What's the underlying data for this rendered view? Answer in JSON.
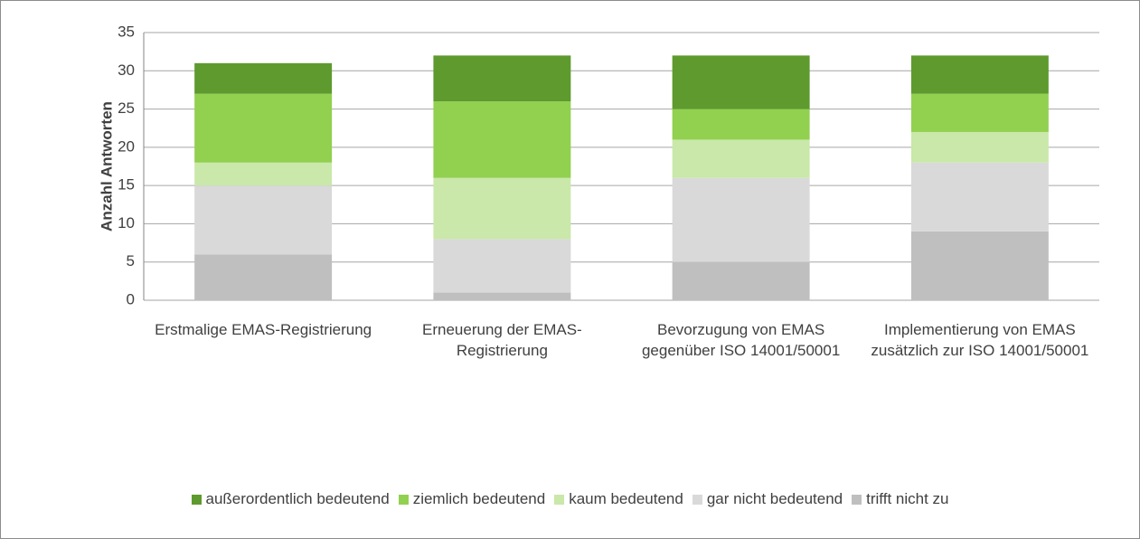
{
  "chart_data": {
    "type": "stacked_bar",
    "y_label": "Anzahl Antworten",
    "categories": [
      "Erstmalige EMAS-Registrierung",
      "Erneuerung der EMAS-Registrierung",
      "Bevorzugung von EMAS gegenüber ISO 14001/50001",
      "Implementierung von EMAS zusätzlich zur ISO 14001/50001"
    ],
    "series": [
      {
        "name": "außerordentlich bedeutend",
        "color": "#5e9a2e",
        "values": [
          4,
          6,
          7,
          5
        ]
      },
      {
        "name": "ziemlich bedeutend",
        "color": "#92d050",
        "values": [
          9,
          10,
          4,
          5
        ]
      },
      {
        "name": "kaum bedeutend",
        "color": "#c9e8a9",
        "values": [
          3,
          8,
          5,
          4
        ]
      },
      {
        "name": "gar nicht bedeutend",
        "color": "#d9d9d9",
        "values": [
          9,
          7,
          11,
          9
        ]
      },
      {
        "name": "trifft nicht zu",
        "color": "#bfbfbf",
        "values": [
          6,
          1,
          5,
          9
        ]
      }
    ],
    "ylim": [
      0,
      35
    ],
    "yticks": [
      0,
      5,
      10,
      15,
      20,
      25,
      30,
      35
    ],
    "grid": true,
    "legend": "bottom"
  }
}
